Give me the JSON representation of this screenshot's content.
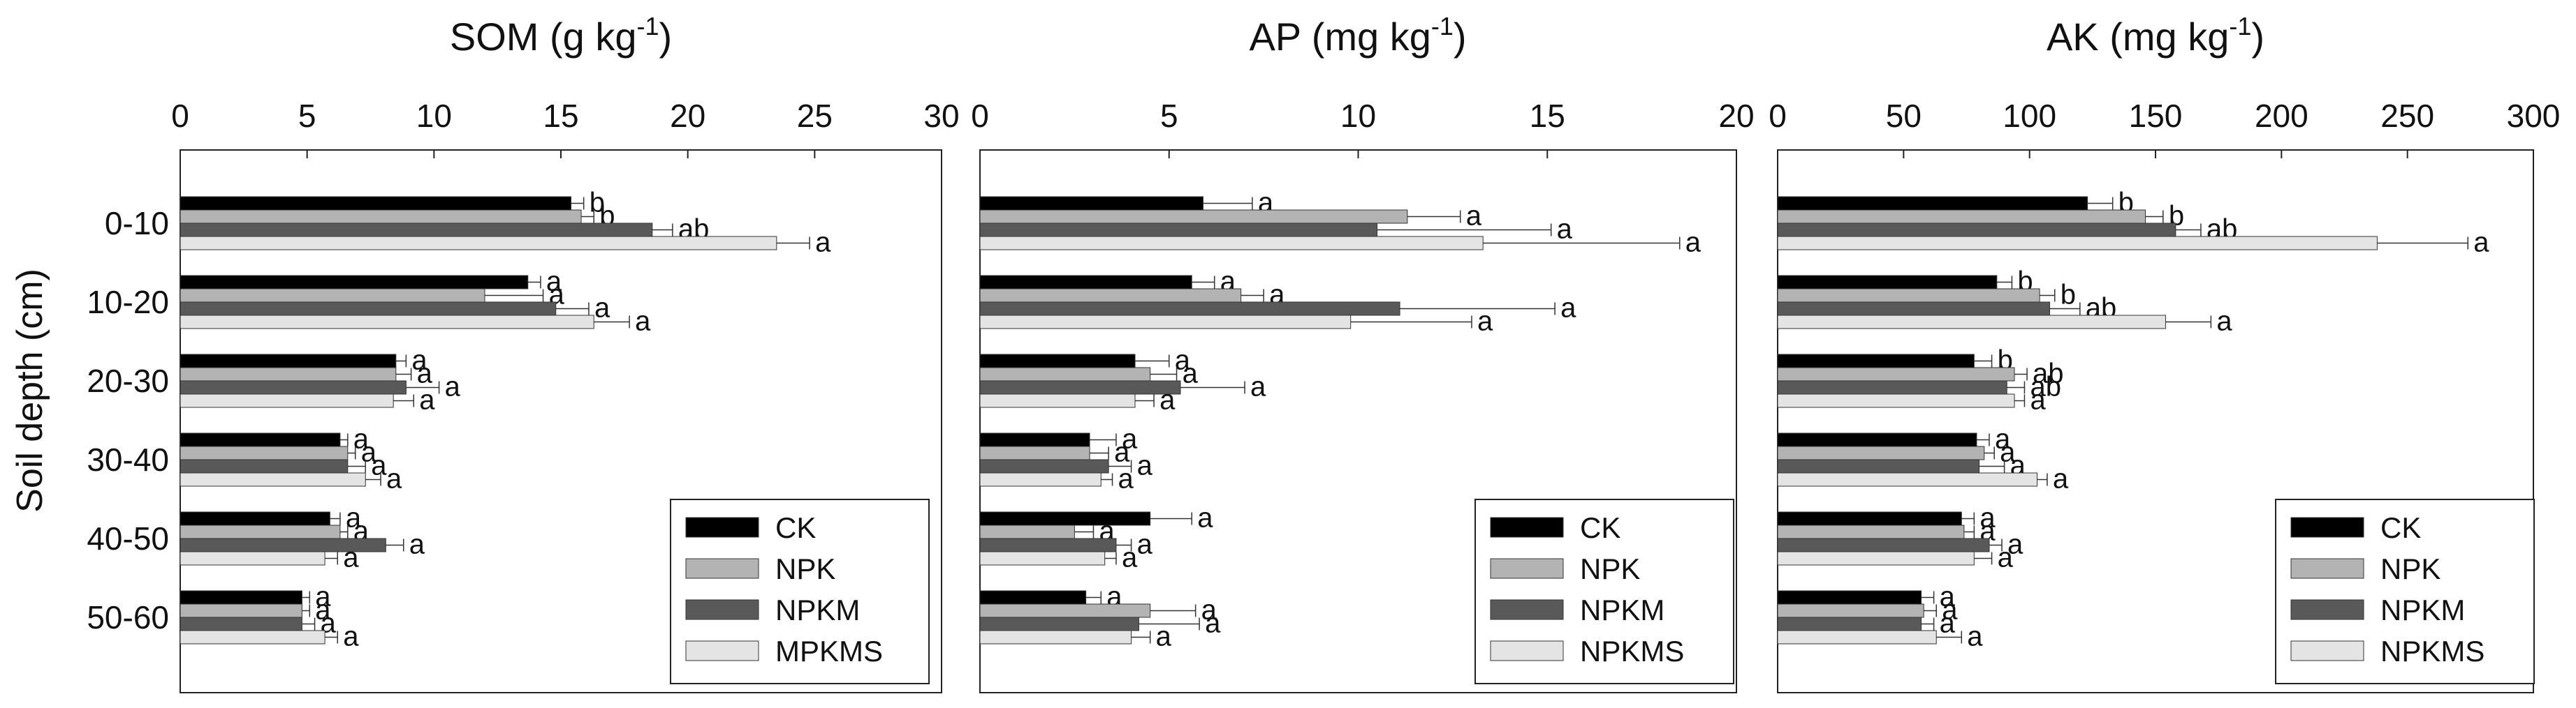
{
  "chart_data": [
    {
      "type": "bar",
      "orientation": "horizontal",
      "title_main": "SOM (g kg",
      "title_sup": "-1",
      "title_close": ")",
      "ylabel": "Soil depth (cm)",
      "xlim": [
        0,
        30
      ],
      "xticks": [
        "0",
        "5",
        "10",
        "15",
        "20",
        "25",
        "30"
      ],
      "categories": [
        "0-10",
        "10-20",
        "20-30",
        "30-40",
        "40-50",
        "50-60"
      ],
      "series": [
        {
          "name": "CK",
          "color": "#000000",
          "values": [
            15.4,
            13.7,
            8.5,
            6.3,
            5.9,
            4.8
          ],
          "errors": [
            0.5,
            0.5,
            0.4,
            0.3,
            0.4,
            0.3
          ],
          "labels": [
            "b",
            "a",
            "a",
            "a",
            "a",
            "a"
          ]
        },
        {
          "name": "NPK",
          "color": "#b3b3b3",
          "values": [
            15.8,
            12.0,
            8.5,
            6.6,
            6.3,
            4.8
          ],
          "errors": [
            0.5,
            2.3,
            0.6,
            0.3,
            0.3,
            0.3
          ],
          "labels": [
            "b",
            "a",
            "a",
            "a",
            "a",
            "a"
          ]
        },
        {
          "name": "NPKM",
          "color": "#595959",
          "values": [
            18.6,
            14.8,
            8.9,
            6.6,
            8.1,
            4.8
          ],
          "errors": [
            0.8,
            1.3,
            1.3,
            0.7,
            0.7,
            0.5
          ],
          "labels": [
            "ab",
            "a",
            "a",
            "a",
            "a",
            "a"
          ]
        },
        {
          "name": "MPKMS",
          "color": "#e4e4e4",
          "values": [
            23.5,
            16.3,
            8.4,
            7.3,
            5.7,
            5.7
          ],
          "errors": [
            1.3,
            1.4,
            0.8,
            0.6,
            0.5,
            0.5
          ],
          "labels": [
            "a",
            "a",
            "a",
            "a",
            "a",
            "a"
          ]
        }
      ]
    },
    {
      "type": "bar",
      "orientation": "horizontal",
      "title_main": "AP (mg kg",
      "title_sup": "-1",
      "title_close": ")",
      "xlim": [
        0,
        20
      ],
      "xticks": [
        "0",
        "5",
        "10",
        "15",
        "20"
      ],
      "categories": [
        "0-10",
        "10-20",
        "20-30",
        "30-40",
        "40-50",
        "50-60"
      ],
      "series": [
        {
          "name": "CK",
          "color": "#000000",
          "values": [
            5.9,
            5.6,
            4.1,
            2.9,
            4.5,
            2.8
          ],
          "errors": [
            1.3,
            0.6,
            0.9,
            0.7,
            1.1,
            0.4
          ],
          "labels": [
            "a",
            "a",
            "a",
            "a",
            "a",
            "a"
          ]
        },
        {
          "name": "NPK",
          "color": "#b3b3b3",
          "values": [
            11.3,
            6.9,
            4.5,
            2.9,
            2.5,
            4.5
          ],
          "errors": [
            1.4,
            0.6,
            0.7,
            0.5,
            0.5,
            1.2
          ],
          "labels": [
            "a",
            "a",
            "a",
            "a",
            "a",
            "a"
          ]
        },
        {
          "name": "NPKM",
          "color": "#595959",
          "values": [
            10.5,
            11.1,
            5.3,
            3.4,
            3.6,
            4.2
          ],
          "errors": [
            4.6,
            4.1,
            1.7,
            0.6,
            0.4,
            1.6
          ],
          "labels": [
            "a",
            "a",
            "a",
            "a",
            "a",
            "a"
          ]
        },
        {
          "name": "NPKMS",
          "color": "#e4e4e4",
          "values": [
            13.3,
            9.8,
            4.1,
            3.2,
            3.3,
            4.0
          ],
          "errors": [
            5.2,
            3.2,
            0.5,
            0.3,
            0.3,
            0.5
          ],
          "labels": [
            "a",
            "a",
            "a",
            "a",
            "a",
            "a"
          ]
        }
      ]
    },
    {
      "type": "bar",
      "orientation": "horizontal",
      "title_main": "AK (mg kg",
      "title_sup": "-1",
      "title_close": ")",
      "xlim": [
        0,
        300
      ],
      "xticks": [
        "0",
        "50",
        "100",
        "150",
        "200",
        "250",
        "300"
      ],
      "categories": [
        "0-10",
        "10-20",
        "20-30",
        "30-40",
        "40-50",
        "50-60"
      ],
      "series": [
        {
          "name": "CK",
          "color": "#000000",
          "values": [
            123,
            87,
            78,
            79,
            73,
            57
          ],
          "errors": [
            10,
            6,
            7,
            5,
            5,
            5
          ],
          "labels": [
            "b",
            "b",
            "b",
            "a",
            "a",
            "a"
          ]
        },
        {
          "name": "NPK",
          "color": "#b3b3b3",
          "values": [
            146,
            104,
            94,
            82,
            74,
            58
          ],
          "errors": [
            7,
            6,
            5,
            4,
            4,
            5
          ],
          "labels": [
            "b",
            "b",
            "ab",
            "a",
            "a",
            "a"
          ]
        },
        {
          "name": "NPKM",
          "color": "#595959",
          "values": [
            158,
            108,
            91,
            80,
            84,
            57
          ],
          "errors": [
            10,
            12,
            7,
            10,
            5,
            5
          ],
          "labels": [
            "ab",
            "ab",
            "ab",
            "a",
            "a",
            "a"
          ]
        },
        {
          "name": "NPKMS",
          "color": "#e4e4e4",
          "values": [
            238,
            154,
            94,
            103,
            78,
            63
          ],
          "errors": [
            36,
            18,
            4,
            4,
            7,
            10
          ],
          "labels": [
            "a",
            "a",
            "a",
            "a",
            "a",
            "a"
          ]
        }
      ]
    }
  ]
}
